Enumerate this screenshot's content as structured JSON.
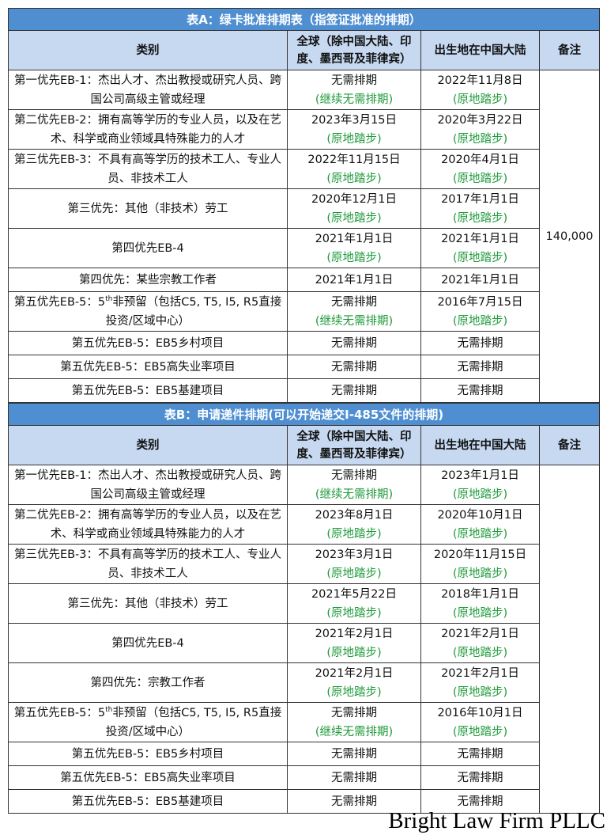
{
  "tables": [
    {
      "title": "表A：绿卡批准排期表（指签证批准的排期）",
      "header": [
        "类别",
        "全球（除中国大陆、印度、墨西哥及菲律宾）",
        "出生地在中国大陆",
        "备注"
      ],
      "rows": [
        {
          "category": [
            "第一优先EB-1：杰出人才、杰出教授或研究人员、跨国公司高级主管或经理"
          ],
          "global": [
            "无需排期",
            "(继续无需排期)"
          ],
          "china": [
            "2022年11月8日",
            "(原地踏步)"
          ]
        },
        {
          "category": [
            "第二优先EB-2：拥有高等学历的专业人员，以及在艺术、科学或商业领域具特殊能力的人才"
          ],
          "global": [
            "2023年3月15日",
            "(原地踏步)"
          ],
          "china": [
            "2020年3月22日",
            "(原地踏步)"
          ]
        },
        {
          "category": [
            "第三优先EB-3：不具有高等学历的技术工人、专业人员、非技术工人"
          ],
          "global": [
            "2022年11月15日",
            "(原地踏步)"
          ],
          "china": [
            "2020年4月1日",
            "(原地踏步)"
          ]
        },
        {
          "category": [
            "第三优先：其他（非技术）劳工"
          ],
          "global": [
            "2020年12月1日",
            "(原地踏步)"
          ],
          "china": [
            "2017年1月1日",
            "(原地踏步)"
          ]
        },
        {
          "category": [
            "第四优先EB-4"
          ],
          "global": [
            "2021年1月1日",
            "(原地踏步)"
          ],
          "china": [
            "2021年1月1日",
            "(原地踏步)"
          ]
        },
        {
          "category": [
            "第四优先：某些宗教工作者"
          ],
          "global": [
            "2021年1月1日"
          ],
          "china": [
            "2021年1月1日"
          ]
        },
        {
          "category": [
            "第五优先EB-5：5",
            "th",
            "非预留（包括C5, T5, I5, R5直接投资/区域中心）"
          ],
          "global": [
            "无需排期",
            "(继续无需排期)"
          ],
          "china": [
            "2016年7月15日",
            "(原地踏步)"
          ]
        },
        {
          "category": [
            "第五优先EB-5：EB5乡村项目"
          ],
          "global": [
            "无需排期"
          ],
          "china": [
            "无需排期"
          ]
        },
        {
          "category": [
            "第五优先EB-5：EB5高失业率项目"
          ],
          "global": [
            "无需排期"
          ],
          "china": [
            "无需排期"
          ]
        },
        {
          "category": [
            "第五优先EB-5：EB5基建项目"
          ],
          "global": [
            "无需排期"
          ],
          "china": [
            "无需排期"
          ]
        }
      ],
      "remark": "140,000"
    },
    {
      "title": "表B：申请递件排期(可以开始递交I-485文件的排期)",
      "header": [
        "类别",
        "全球（除中国大陆、印度、墨西哥及菲律宾）",
        "出生地在中国大陆",
        "备注"
      ],
      "rows": [
        {
          "category": [
            "第一优先EB-1：杰出人才、杰出教授或研究人员、跨国公司高级主管或经理"
          ],
          "global": [
            "无需排期",
            "(继续无需排期)"
          ],
          "china": [
            "2023年1月1日",
            "(原地踏步)"
          ]
        },
        {
          "category": [
            "第二优先EB-2：拥有高等学历的专业人员，以及在艺术、科学或商业领域具特殊能力的人才"
          ],
          "global": [
            "2023年8月1日",
            "(原地踏步)"
          ],
          "china": [
            "2020年10月1日",
            "(原地踏步)"
          ]
        },
        {
          "category": [
            "第三优先EB-3：不具有高等学历的技术工人、专业人员、非技术工人"
          ],
          "global": [
            "2023年3月1日",
            "(原地踏步)"
          ],
          "china": [
            "2020年11月15日",
            "(原地踏步)"
          ]
        },
        {
          "category": [
            "第三优先：其他（非技术）劳工"
          ],
          "global": [
            "2021年5月22日",
            "(原地踏步)"
          ],
          "china": [
            "2018年1月1日",
            "(原地踏步)"
          ]
        },
        {
          "category": [
            "第四优先EB-4"
          ],
          "global": [
            "2021年2月1日",
            "(原地踏步)"
          ],
          "china": [
            "2021年2月1日",
            "(原地踏步)"
          ]
        },
        {
          "category": [
            "第四优先：宗教工作者"
          ],
          "global": [
            "2021年2月1日",
            "(原地踏步)"
          ],
          "china": [
            "2021年2月1日",
            "(原地踏步)"
          ]
        },
        {
          "category": [
            "第五优先EB-5：5",
            "th",
            "非预留（包括C5, T5, I5, R5直接投资/区域中心）"
          ],
          "global": [
            "无需排期",
            "(继续无需排期)"
          ],
          "china": [
            "2016年10月1日",
            "(原地踏步)"
          ]
        },
        {
          "category": [
            "第五优先EB-5：EB5乡村项目"
          ],
          "global": [
            "无需排期"
          ],
          "china": [
            "无需排期"
          ]
        },
        {
          "category": [
            "第五优先EB-5：EB5高失业率项目"
          ],
          "global": [
            "无需排期"
          ],
          "china": [
            "无需排期"
          ]
        },
        {
          "category": [
            "第五优先EB-5：EB5基建项目"
          ],
          "global": [
            "无需排期"
          ],
          "china": [
            "无需排期"
          ]
        }
      ]
    }
  ],
  "watermark": "Bright Law Firm PLLC"
}
